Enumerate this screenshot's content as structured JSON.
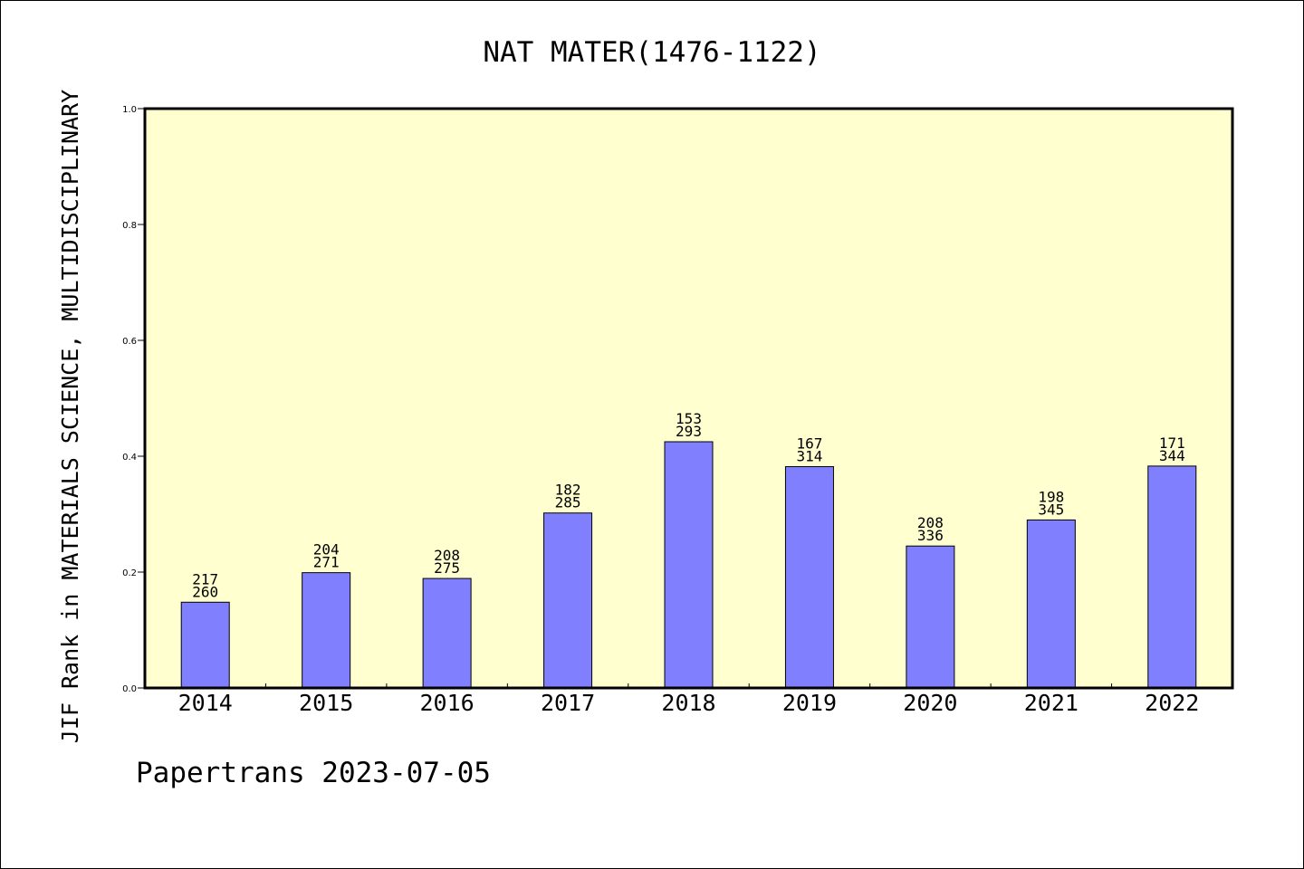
{
  "chart_data": {
    "type": "bar",
    "title": "NAT MATER(1476-1122)",
    "ylabel": "JIF Rank in MATERIALS SCIENCE, MULTIDISCIPLINARY",
    "xlabel": "",
    "ylim": [
      0,
      1
    ],
    "yticks": [
      "0.0",
      "0.2",
      "0.4",
      "0.6",
      "0.8",
      "1.0"
    ],
    "categories": [
      "2014",
      "2015",
      "2016",
      "2017",
      "2018",
      "2019",
      "2020",
      "2021",
      "2022"
    ],
    "values": [
      0.148,
      0.199,
      0.189,
      0.302,
      0.425,
      0.382,
      0.245,
      0.29,
      0.383
    ],
    "rank": [
      "217",
      "204",
      "208",
      "182",
      "153",
      "167",
      "208",
      "198",
      "171"
    ],
    "total": [
      "260",
      "271",
      "275",
      "285",
      "293",
      "314",
      "336",
      "345",
      "344"
    ],
    "grid": false,
    "colors": {
      "plot_background": "#ffffd0",
      "bar_fill": "#8080ff",
      "bar_stroke": "#000000"
    }
  },
  "footer": "Papertrans 2023-07-05"
}
